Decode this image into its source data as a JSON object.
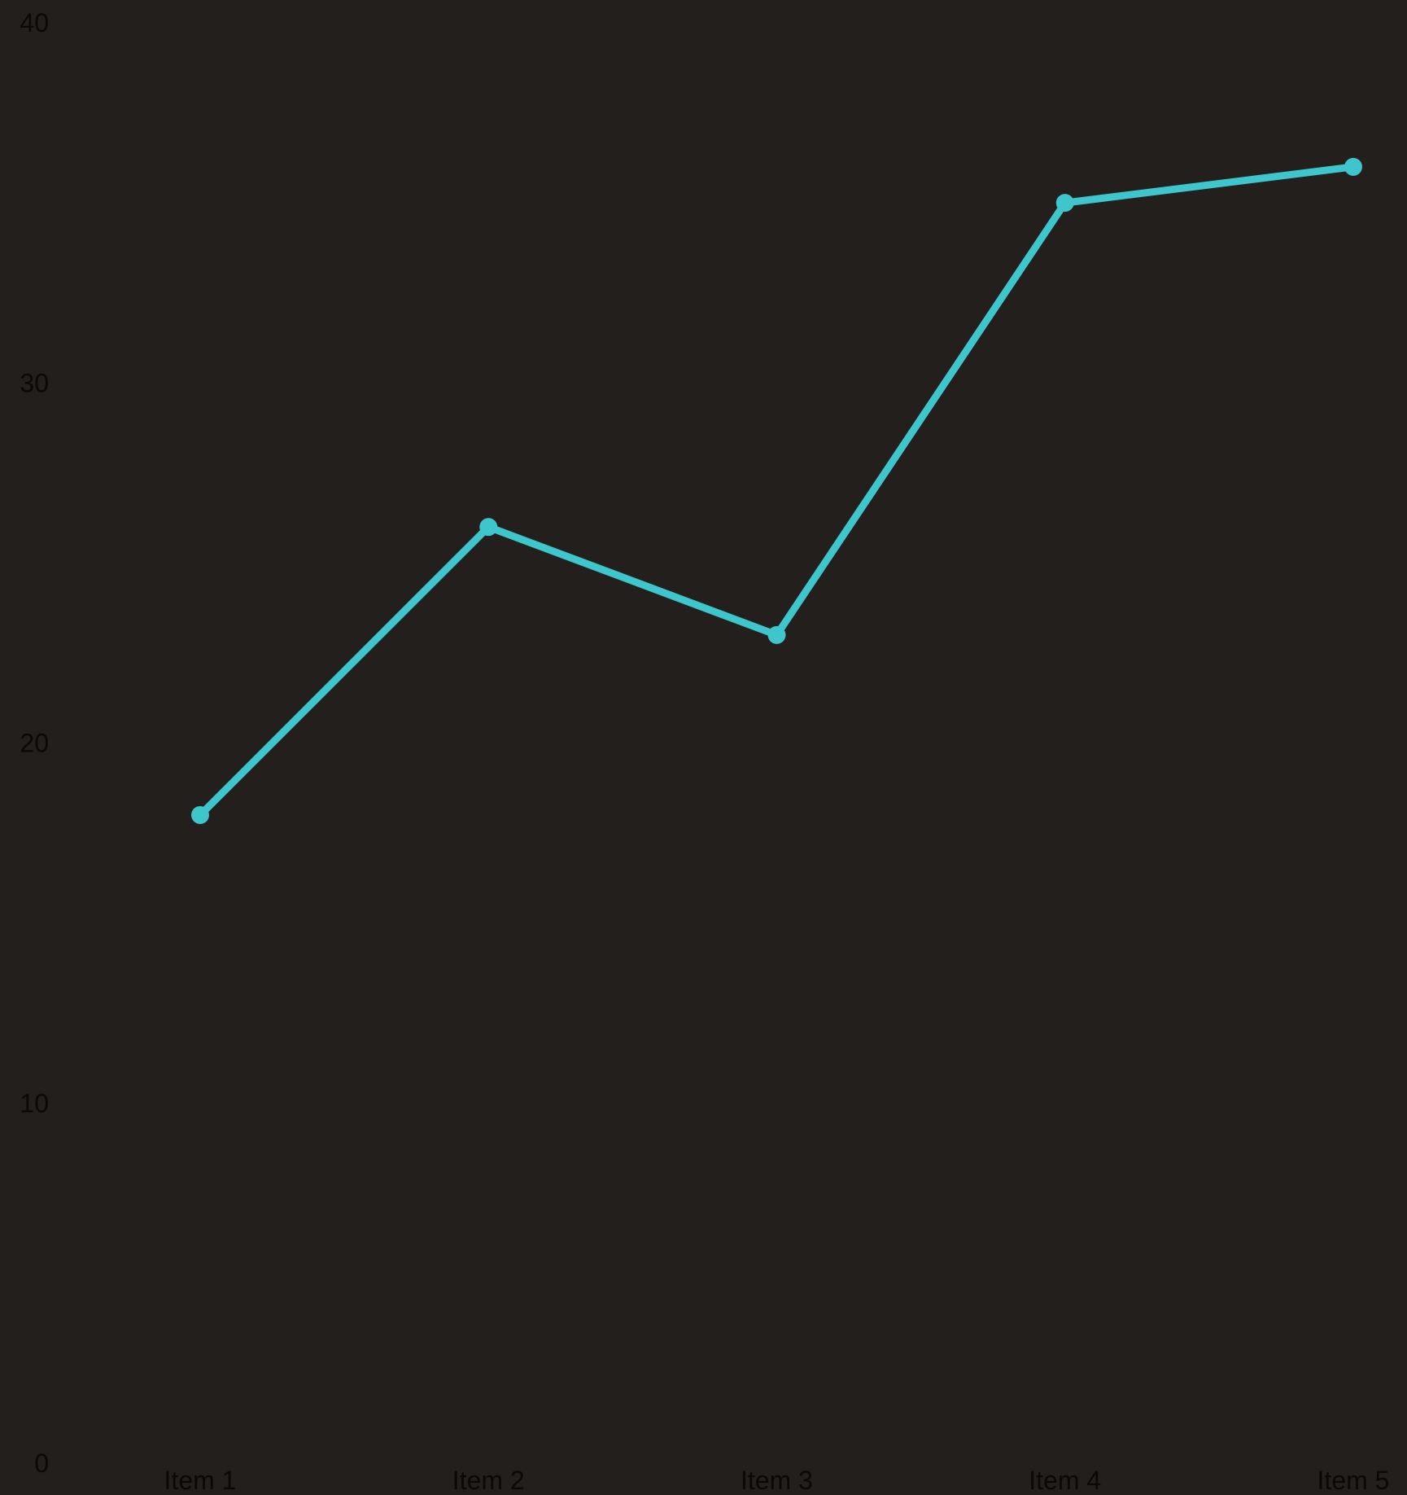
{
  "chart_data": {
    "type": "line",
    "title": "",
    "xlabel": "",
    "ylabel": "",
    "categories": [
      "Item 1",
      "Item 2",
      "Item 3",
      "Item 4",
      "Item 5"
    ],
    "series": [
      {
        "values": [
          18,
          26,
          23,
          35,
          36
        ]
      }
    ],
    "y_ticks": [
      "0",
      "10",
      "20",
      "30",
      "40"
    ],
    "ylim": [
      0,
      40
    ],
    "grid": false,
    "legend": "none",
    "colors": {
      "background": "#221f1c",
      "line": "#3ec6cc",
      "tick_text": "#0a0908"
    }
  }
}
